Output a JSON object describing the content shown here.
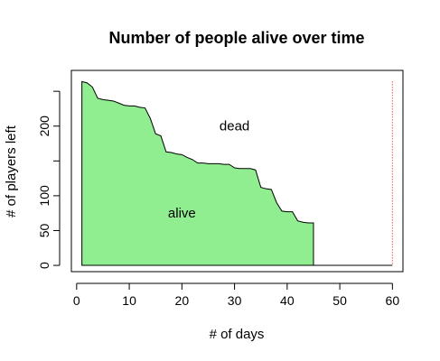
{
  "chart_data": {
    "type": "area",
    "title": "Number of people alive over time",
    "xlabel": "# of days",
    "ylabel": "# of players left",
    "xlim": [
      -1,
      62
    ],
    "ylim": [
      -9,
      280
    ],
    "x_ticks": [
      0,
      10,
      20,
      30,
      40,
      50,
      60
    ],
    "y_ticks": [
      0,
      50,
      100,
      200
    ],
    "y_minor_ticks": [
      150,
      250
    ],
    "series": [
      {
        "x": [
          1,
          2,
          3,
          4,
          5,
          6,
          7,
          8,
          9,
          10,
          11,
          12,
          13,
          14,
          15,
          16,
          17,
          18,
          19,
          20,
          21,
          22,
          23,
          24,
          25,
          26,
          27,
          28,
          29,
          30,
          31,
          32,
          33,
          34,
          35,
          36,
          37,
          38,
          39,
          40,
          41,
          42,
          43,
          44,
          45
        ],
        "y": [
          264,
          262,
          256,
          240,
          238,
          237,
          236,
          233,
          230,
          229,
          229,
          227,
          226,
          211,
          189,
          186,
          163,
          162,
          160,
          159,
          155,
          152,
          147,
          147,
          146,
          146,
          146,
          145,
          145,
          140,
          139,
          139,
          139,
          137,
          112,
          110,
          109,
          90,
          78,
          77,
          77,
          64,
          62,
          61,
          61
        ]
      }
    ],
    "fill_color": "#90ee90",
    "line_color": "#000000",
    "end_marker": {
      "x": 60,
      "color": "#ff0000",
      "style": "dotted"
    },
    "annotations": [
      {
        "text": "dead",
        "x": 30,
        "y": 200
      },
      {
        "text": "alive",
        "x": 20,
        "y": 75
      }
    ]
  }
}
